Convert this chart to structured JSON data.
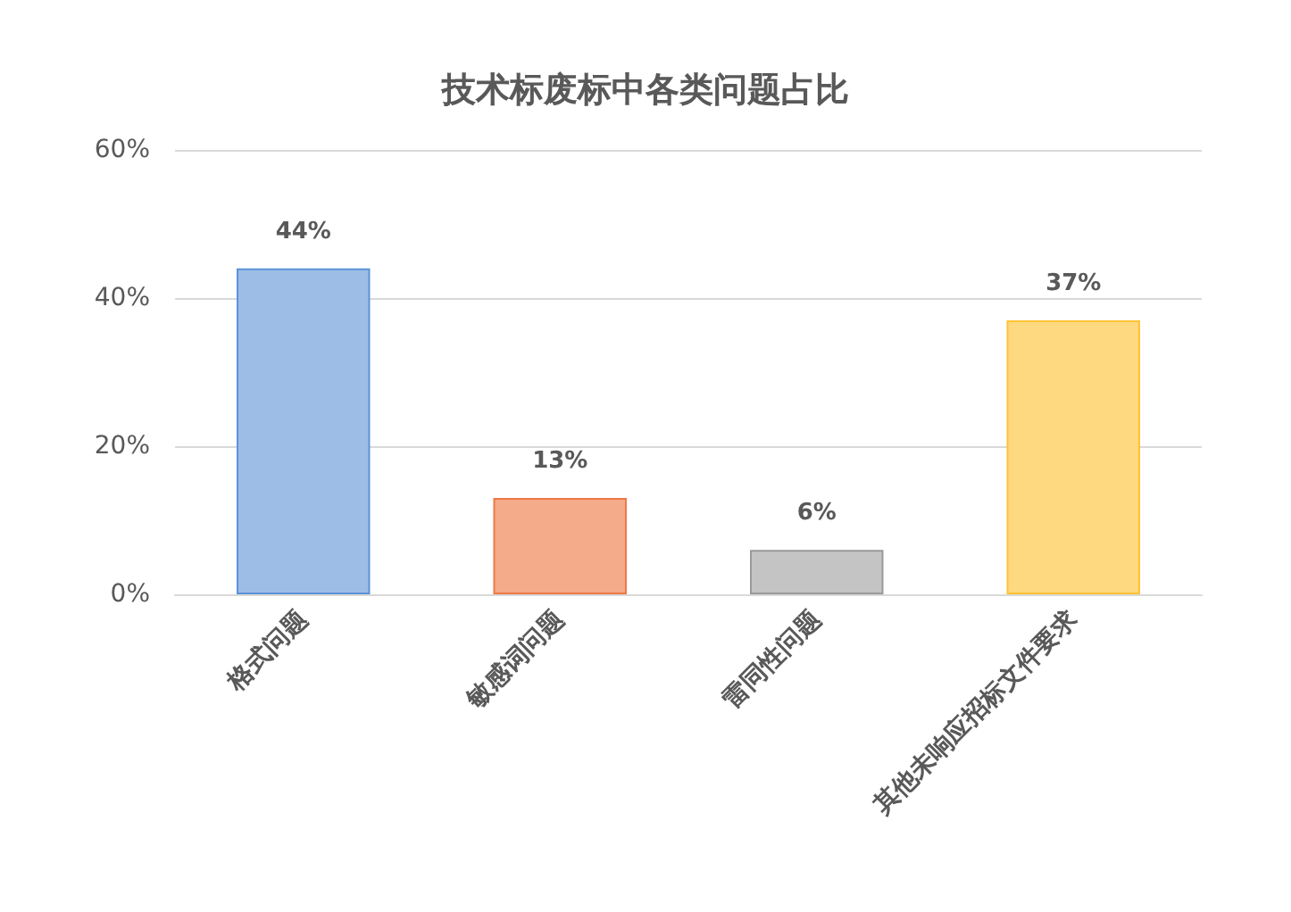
{
  "chart_data": {
    "type": "bar",
    "title": "技术标废标中各类问题占比",
    "categories": [
      "格式问题",
      "敏感词问题",
      "雷同性问题",
      "其他未响应招标文件要求"
    ],
    "values": [
      44,
      13,
      6,
      37
    ],
    "value_labels": [
      "44%",
      "13%",
      "6%",
      "37%"
    ],
    "colors": [
      "#9dbde6",
      "#f4ab8a",
      "#c4c4c4",
      "#ffd980"
    ],
    "ylim": [
      0,
      60
    ],
    "yticks": [
      {
        "value": 0,
        "label": "0%"
      },
      {
        "value": 20,
        "label": "20%"
      },
      {
        "value": 40,
        "label": "40%"
      },
      {
        "value": 60,
        "label": "60%"
      }
    ],
    "grid": "y"
  }
}
